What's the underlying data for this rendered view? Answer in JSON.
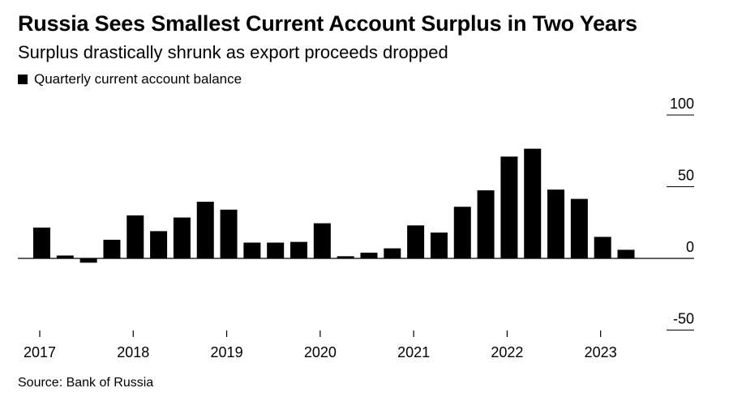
{
  "source": "Source: Bank of Russia",
  "chart_data": {
    "type": "bar",
    "title": "Russia Sees Smallest Current Account Surplus in Two Years",
    "subtitle": "Surplus drastically shrunk as export proceeds dropped",
    "legend": [
      "Quarterly current account balance"
    ],
    "ylim": [
      -50,
      100
    ],
    "yticks": [
      100,
      50,
      0,
      -50
    ],
    "xticks": [
      "2017",
      "2018",
      "2019",
      "2020",
      "2021",
      "2022",
      "2023"
    ],
    "categories": [
      "Q1 2017",
      "Q2 2017",
      "Q3 2017",
      "Q4 2017",
      "Q1 2018",
      "Q2 2018",
      "Q3 2018",
      "Q4 2018",
      "Q1 2019",
      "Q2 2019",
      "Q3 2019",
      "Q4 2019",
      "Q1 2020",
      "Q2 2020",
      "Q3 2020",
      "Q4 2020",
      "Q1 2021",
      "Q2 2021",
      "Q3 2021",
      "Q4 2021",
      "Q1 2022",
      "Q2 2022",
      "Q3 2022",
      "Q4 2022",
      "Q1 2023",
      "Q2 2023"
    ],
    "values": [
      21.5,
      2,
      -3,
      13,
      30,
      19,
      28.5,
      39.5,
      34,
      11,
      11,
      11.5,
      24.5,
      1.5,
      4,
      7,
      23,
      18,
      36,
      47.5,
      71,
      76.5,
      48,
      41.5,
      15,
      6
    ],
    "series_color": "#000000"
  }
}
